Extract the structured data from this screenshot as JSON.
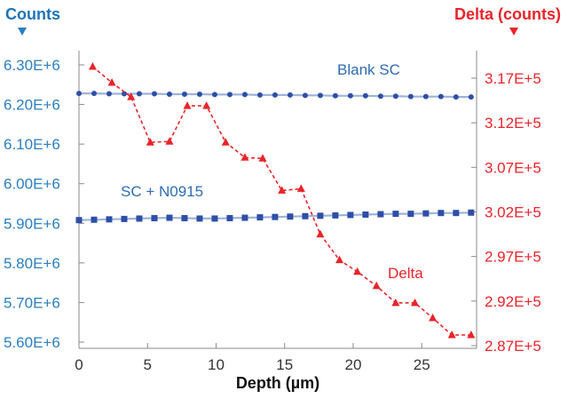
{
  "chart_data": {
    "type": "line",
    "title": "",
    "xlabel": "Depth (µm)",
    "ylabel_left": "Counts",
    "ylabel_right": "Delta (counts)",
    "xlim": [
      0,
      29
    ],
    "xticks": [
      0,
      5,
      10,
      15,
      20,
      25
    ],
    "ylim_left": [
      5600000,
      6300000
    ],
    "yticks_left": [
      "5.60E+6",
      "5.70E+6",
      "5.80E+6",
      "5.90E+6",
      "6.00E+6",
      "6.10E+6",
      "6.20E+6",
      "6.30E+6"
    ],
    "ylim_right": [
      287000,
      318500
    ],
    "yticks_right": [
      "2.87E+5",
      "2.92E+5",
      "2.97E+5",
      "3.02E+5",
      "3.07E+5",
      "3.12E+5",
      "3.17E+5"
    ],
    "grid": false,
    "series": [
      {
        "name": "Blank SC",
        "axis": "left",
        "marker": "circle",
        "color": "#2e4fa8",
        "x": [
          0,
          1.1,
          2.2,
          3.3,
          4.4,
          5.5,
          6.6,
          7.7,
          8.8,
          9.9,
          11,
          12.1,
          13.2,
          14.3,
          15.4,
          16.5,
          17.6,
          18.7,
          19.8,
          20.9,
          22,
          23.1,
          24.2,
          25.3,
          26.4,
          27.5,
          28.6
        ],
        "values": [
          6228000,
          6228000,
          6227000,
          6227000,
          6227000,
          6227000,
          6226000,
          6226000,
          6226000,
          6225000,
          6225000,
          6225000,
          6224000,
          6224000,
          6224000,
          6223000,
          6223000,
          6222000,
          6222000,
          6222000,
          6221000,
          6221000,
          6220000,
          6220000,
          6220000,
          6219000,
          6219000
        ]
      },
      {
        "name": "SC + N0915",
        "axis": "left",
        "marker": "square",
        "color": "#2e4fa8",
        "x": [
          0,
          1.1,
          2.2,
          3.3,
          4.4,
          5.5,
          6.6,
          7.7,
          8.8,
          9.9,
          11,
          12.1,
          13.2,
          14.3,
          15.4,
          16.5,
          17.6,
          18.7,
          19.8,
          20.9,
          22,
          23.1,
          24.2,
          25.3,
          26.4,
          27.5,
          28.6
        ],
        "values": [
          5908000,
          5909000,
          5910000,
          5911000,
          5912000,
          5913000,
          5914000,
          5913000,
          5912000,
          5912000,
          5913000,
          5914000,
          5915000,
          5916000,
          5917000,
          5918000,
          5919000,
          5920000,
          5921000,
          5922000,
          5923000,
          5924000,
          5924000,
          5925000,
          5926000,
          5926000,
          5927000
        ]
      },
      {
        "name": "Delta",
        "axis": "right",
        "marker": "triangle",
        "color": "#e8242b",
        "x": [
          1,
          2.4,
          3.8,
          5.2,
          6.6,
          7.9,
          9.3,
          10.7,
          12.1,
          13.4,
          14.8,
          16.2,
          17.6,
          19,
          20.3,
          21.7,
          23.1,
          24.5,
          25.8,
          27.2,
          28.6
        ],
        "values": [
          318300,
          316500,
          314900,
          309800,
          309900,
          313900,
          313900,
          309800,
          308100,
          308000,
          304400,
          304600,
          299500,
          296600,
          295300,
          293700,
          291800,
          291800,
          290100,
          288200,
          288200
        ]
      }
    ]
  }
}
